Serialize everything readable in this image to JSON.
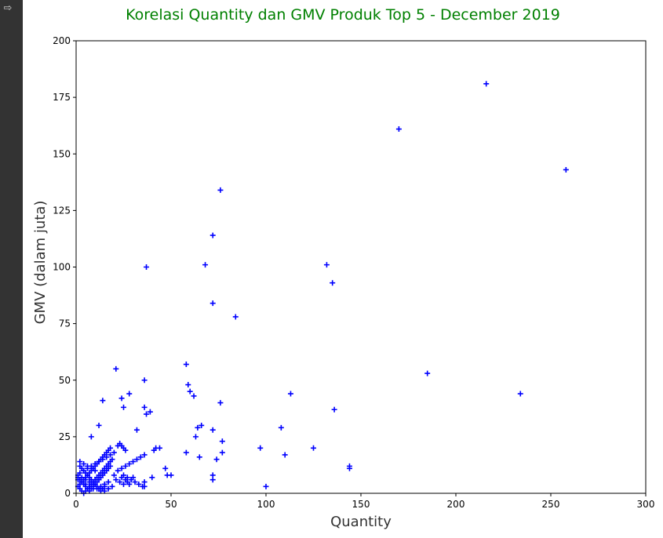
{
  "gutter": {
    "icon": "output-expand-icon",
    "glyph": "⇨"
  },
  "chart_data": {
    "type": "scatter",
    "title": "Korelasi Quantity dan GMV Produk Top 5 - December 2019",
    "xlabel": "Quantity",
    "ylabel": "GMV (dalam juta)",
    "xlim": [
      0,
      300
    ],
    "ylim": [
      0,
      200
    ],
    "xticks": [
      0,
      50,
      100,
      150,
      200,
      250,
      300
    ],
    "yticks": [
      0,
      25,
      50,
      75,
      100,
      125,
      150,
      175,
      200
    ],
    "marker": "+",
    "color": "#0000ff",
    "title_color": "#008000",
    "grid": false,
    "x": [
      216,
      170,
      258,
      76,
      72,
      37,
      68,
      132,
      135,
      72,
      84,
      21,
      58,
      185,
      36,
      59,
      60,
      62,
      113,
      234,
      14,
      24,
      28,
      25,
      36,
      37,
      39,
      76,
      136,
      66,
      64,
      12,
      32,
      8,
      108,
      63,
      58,
      72,
      77,
      97,
      110,
      125,
      144,
      144,
      100,
      72,
      72,
      65,
      74,
      77,
      48,
      50,
      47,
      42,
      41,
      44,
      40,
      36,
      34,
      32,
      30,
      28,
      26,
      24,
      22,
      20,
      18,
      16,
      14,
      12,
      10,
      8,
      6,
      4,
      2,
      1,
      3,
      5,
      7,
      9,
      11,
      13,
      15,
      17,
      19,
      21,
      23,
      25,
      27,
      29,
      31,
      33,
      35,
      26,
      25,
      24,
      23,
      22,
      18,
      17,
      16,
      15,
      14,
      13,
      12,
      11,
      10,
      9,
      8,
      7,
      6,
      5,
      4,
      3,
      2,
      1,
      2,
      3,
      4,
      5,
      6,
      7,
      8,
      9,
      10,
      11,
      12,
      13,
      14,
      15,
      16,
      17,
      18,
      19,
      20,
      1,
      2,
      3,
      4,
      5,
      6,
      7,
      8,
      9,
      10,
      11,
      12,
      13,
      14,
      15,
      16,
      17,
      18,
      2,
      3,
      4,
      5,
      6,
      7,
      8,
      9,
      10,
      11,
      12,
      13,
      14,
      15,
      36,
      36,
      24,
      25,
      26,
      27,
      28,
      30,
      2,
      4,
      6,
      8,
      10,
      1,
      3,
      5,
      7,
      9,
      11,
      13,
      15,
      17
    ],
    "y": [
      181,
      161,
      143,
      134,
      114,
      100,
      101,
      101,
      93,
      84,
      78,
      55,
      57,
      53,
      50,
      48,
      45,
      43,
      44,
      44,
      41,
      42,
      44,
      38,
      38,
      35,
      36,
      40,
      37,
      30,
      29,
      30,
      28,
      25,
      29,
      25,
      18,
      28,
      23,
      20,
      17,
      20,
      12,
      11,
      3,
      8,
      6,
      16,
      15,
      18,
      8,
      8,
      11,
      20,
      19,
      20,
      7,
      17,
      16,
      15,
      14,
      13,
      12,
      11,
      10,
      18,
      17,
      16,
      15,
      14,
      13,
      12,
      11,
      10,
      9,
      8,
      7,
      6,
      5,
      4,
      3,
      2,
      1,
      2,
      3,
      6,
      5,
      4,
      7,
      6,
      5,
      4,
      3,
      19,
      20,
      21,
      22,
      21,
      20,
      19,
      18,
      17,
      16,
      15,
      14,
      13,
      12,
      11,
      10,
      9,
      8,
      7,
      6,
      5,
      4,
      3,
      2,
      1,
      0,
      1,
      2,
      3,
      4,
      5,
      6,
      7,
      8,
      9,
      10,
      11,
      12,
      13,
      14,
      15,
      8,
      7,
      6,
      5,
      4,
      3,
      2,
      1,
      2,
      3,
      4,
      5,
      6,
      7,
      8,
      9,
      10,
      11,
      12,
      12,
      11,
      10,
      9,
      8,
      7,
      6,
      5,
      4,
      3,
      2,
      1,
      2,
      3,
      5,
      3,
      7,
      8,
      6,
      5,
      4,
      7,
      14,
      13,
      12,
      11,
      10,
      6,
      5,
      4,
      3,
      2,
      2,
      3,
      4,
      5
    ]
  }
}
